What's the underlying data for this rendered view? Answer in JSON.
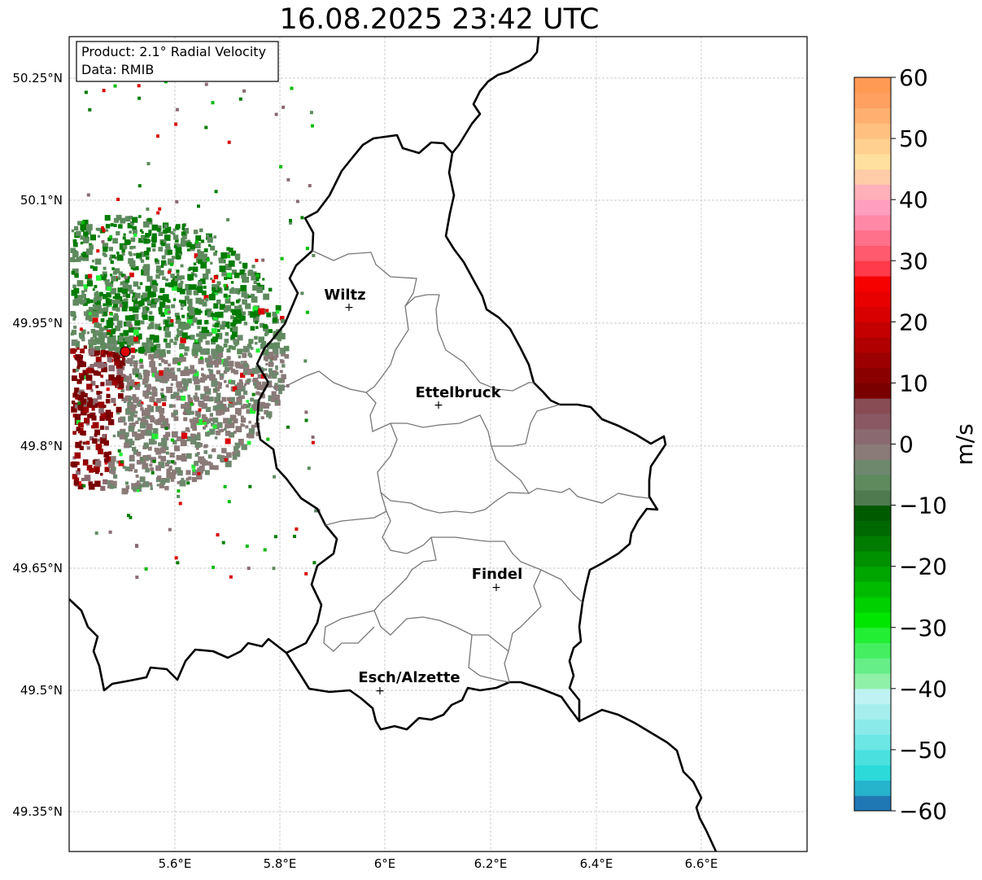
{
  "title": "16.08.2025 23:42 UTC",
  "info_box": {
    "product": "Product: 2.1° Radial Velocity",
    "source": "Data: RMIB"
  },
  "axes": {
    "lat_ticks": [
      "50.25°N",
      "50.1°N",
      "49.95°N",
      "49.8°N",
      "49.65°N",
      "49.5°N",
      "49.35°N"
    ],
    "lon_ticks": [
      "5.6°E",
      "5.8°E",
      "6°E",
      "6.2°E",
      "6.4°E",
      "6.6°E"
    ],
    "lat_range": [
      49.3,
      50.3
    ],
    "lon_range": [
      5.4,
      6.8
    ],
    "grid": true
  },
  "cities": [
    {
      "name": "Wiltz",
      "lat": 49.966,
      "lon": 5.932
    },
    {
      "name": "Ettelbruck",
      "lat": 49.847,
      "lon": 6.104
    },
    {
      "name": "Findel",
      "lat": 49.627,
      "lon": 6.211
    },
    {
      "name": "Esch/Alzette",
      "lat": 49.5,
      "lon": 5.987
    }
  ],
  "radar": {
    "name": "radar-site",
    "lat": 49.914,
    "lon": 5.506,
    "range_km": 40
  },
  "colorbar": {
    "unit": "m/s",
    "min": -60,
    "max": 60,
    "ticks": [
      "60",
      "50",
      "40",
      "30",
      "20",
      "10",
      "0",
      "−10",
      "−20",
      "−30",
      "−40",
      "−50",
      "−60"
    ],
    "colors": [
      "#1f78b4",
      "#26b3cc",
      "#2cdada",
      "#4ae0e0",
      "#6de6e6",
      "#8aeaea",
      "#a6eeee",
      "#bff2f2",
      "#8ff0a8",
      "#66ee88",
      "#44ee60",
      "#22ee33",
      "#00e600",
      "#00d000",
      "#00bb00",
      "#00a600",
      "#009100",
      "#007c00",
      "#006800",
      "#005a00",
      "#4f7a4f",
      "#5e8a5e",
      "#6e886e",
      "#8a7a78",
      "#8a6a70",
      "#8a5862",
      "#884c55",
      "#7a0000",
      "#8a0000",
      "#9c0000",
      "#b00000",
      "#c40000",
      "#d80000",
      "#e80000",
      "#f60000",
      "#ff3a4a",
      "#ff5a6e",
      "#ff708a",
      "#ff88a6",
      "#ff9fc0",
      "#ffb0b8",
      "#ffcca8",
      "#ffe09e",
      "#ffd090",
      "#ffc080",
      "#ffb070",
      "#ffa060",
      "#ff9a55"
    ]
  }
}
